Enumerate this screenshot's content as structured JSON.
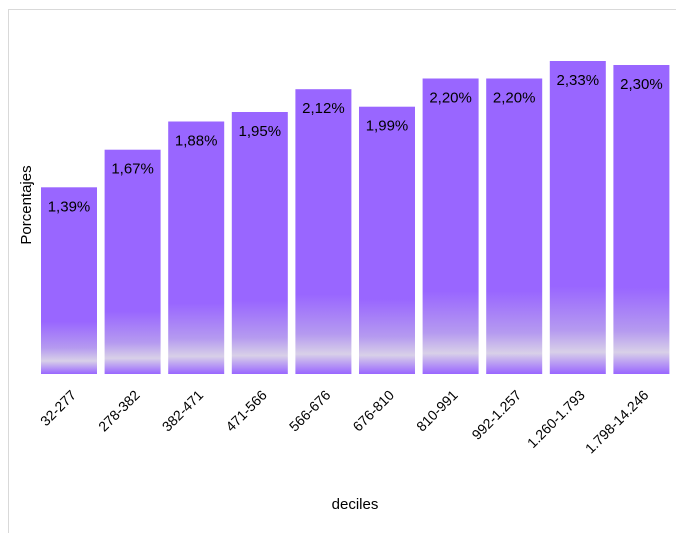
{
  "chart_data": {
    "type": "bar",
    "title": "",
    "xlabel": "deciles",
    "ylabel": "Porcentajes",
    "categories": [
      "32-277",
      "278-382",
      "382-471",
      "471-566",
      "566-676",
      "676-810",
      "810-991",
      "992-1.257",
      "1.260-1.793",
      "1.798-14.246"
    ],
    "values": [
      1.39,
      1.67,
      1.88,
      1.95,
      2.12,
      1.99,
      2.2,
      2.2,
      2.33,
      2.3
    ],
    "data_labels": [
      "1,39%",
      "1,67%",
      "1,88%",
      "1,95%",
      "2,12%",
      "1,99%",
      "2,20%",
      "2,20%",
      "2,33%",
      "2,30%"
    ],
    "ylim": [
      0,
      2.33
    ],
    "grid": false,
    "legend": "none",
    "colors": {
      "bar": "#9966ff"
    }
  }
}
